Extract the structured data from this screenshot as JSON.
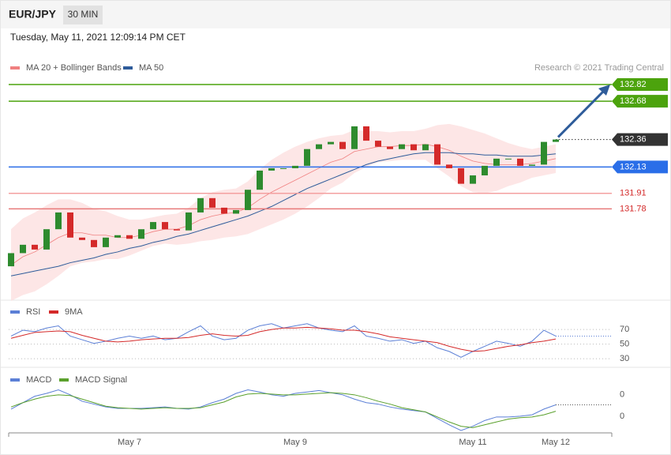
{
  "header": {
    "symbol": "EUR/JPY",
    "interval": "30 MIN",
    "timestamp": "Tuesday, May 11, 2021 12:09:14 PM CET"
  },
  "chart_data": [
    {
      "type": "candlestick",
      "source": "Research © 2021 Trading Central",
      "ylim": [
        131.03,
        133.13
      ],
      "up_color": "#2e8b2e",
      "down_color": "#d42a2a",
      "open": [
        131.3,
        131.41,
        131.48,
        131.44,
        131.61,
        131.75,
        131.54,
        131.52,
        131.46,
        131.54,
        131.56,
        131.53,
        131.61,
        131.67,
        131.61,
        131.6,
        131.75,
        131.87,
        131.79,
        131.74,
        131.77,
        131.94,
        132.1,
        132.12,
        132.12,
        132.14,
        132.28,
        132.32,
        132.34,
        132.28,
        132.47,
        132.35,
        132.3,
        132.28,
        132.32,
        132.27,
        132.32,
        132.15,
        132.12,
        131.99,
        132.06,
        132.14,
        132.2,
        132.2,
        132.14,
        132.15,
        132.34
      ],
      "close": [
        131.41,
        131.48,
        131.44,
        131.61,
        131.75,
        131.54,
        131.52,
        131.46,
        131.54,
        131.56,
        131.53,
        131.61,
        131.67,
        131.61,
        131.6,
        131.75,
        131.87,
        131.79,
        131.74,
        131.77,
        131.94,
        132.1,
        132.12,
        132.12,
        132.14,
        132.28,
        132.32,
        132.34,
        132.28,
        132.47,
        132.35,
        132.3,
        132.28,
        132.32,
        132.27,
        132.32,
        132.15,
        132.12,
        131.99,
        132.06,
        132.14,
        132.2,
        132.2,
        132.14,
        132.15,
        132.34,
        132.36
      ],
      "series": [
        {
          "name": "MA 20 + Bollinger Bands",
          "color": "#f08080",
          "band_color": "#fde0e0",
          "values": [
            131.31,
            131.38,
            131.42,
            131.48,
            131.54,
            131.58,
            131.58,
            131.56,
            131.56,
            131.54,
            131.54,
            131.56,
            131.59,
            131.61,
            131.61,
            131.64,
            131.69,
            131.72,
            131.74,
            131.75,
            131.79,
            131.86,
            131.92,
            131.97,
            132.02,
            132.07,
            132.12,
            132.17,
            132.2,
            132.26,
            132.28,
            132.3,
            132.3,
            132.31,
            132.31,
            132.32,
            132.3,
            132.27,
            132.22,
            132.18,
            132.16,
            132.15,
            132.15,
            132.15,
            132.16,
            132.18,
            132.2
          ],
          "upper": [
            131.61,
            131.7,
            131.75,
            131.81,
            131.86,
            131.86,
            131.83,
            131.78,
            131.76,
            131.72,
            131.69,
            131.69,
            131.71,
            131.73,
            131.74,
            131.79,
            131.87,
            131.92,
            131.94,
            131.95,
            132.01,
            132.11,
            132.19,
            132.25,
            132.3,
            132.34,
            132.37,
            132.39,
            132.4,
            132.44,
            132.43,
            132.43,
            132.42,
            132.43,
            132.43,
            132.45,
            132.48,
            132.49,
            132.47,
            132.44,
            132.41,
            132.37,
            132.33,
            132.3,
            132.28,
            132.3,
            132.32
          ],
          "lower": [
            131.01,
            131.06,
            131.09,
            131.15,
            131.22,
            131.3,
            131.33,
            131.34,
            131.36,
            131.36,
            131.39,
            131.43,
            131.47,
            131.49,
            131.48,
            131.49,
            131.51,
            131.52,
            131.54,
            131.55,
            131.57,
            131.61,
            131.65,
            131.69,
            131.74,
            131.8,
            131.87,
            131.95,
            132.0,
            132.08,
            132.13,
            132.17,
            132.18,
            132.19,
            132.19,
            132.19,
            132.12,
            132.05,
            131.97,
            131.92,
            131.91,
            131.93,
            131.97,
            132.0,
            132.04,
            132.06,
            132.08
          ]
        },
        {
          "name": "MA 50",
          "color": "#2e5c9a",
          "values": [
            131.22,
            131.24,
            131.26,
            131.28,
            131.3,
            131.33,
            131.35,
            131.37,
            131.4,
            131.42,
            131.45,
            131.47,
            131.5,
            131.52,
            131.55,
            131.57,
            131.6,
            131.63,
            131.66,
            131.69,
            131.72,
            131.76,
            131.8,
            131.85,
            131.9,
            131.95,
            131.99,
            132.03,
            132.07,
            132.11,
            132.15,
            132.18,
            132.2,
            132.22,
            132.24,
            132.25,
            132.25,
            132.25,
            132.24,
            132.24,
            132.23,
            132.23,
            132.22,
            132.22,
            132.22,
            132.23,
            132.24
          ]
        }
      ],
      "levels": [
        {
          "value": 132.82,
          "color": "#4ca30d",
          "style": "box",
          "line": "solid"
        },
        {
          "value": 132.68,
          "color": "#4ca30d",
          "style": "box",
          "line": "solid"
        },
        {
          "value": 132.36,
          "color": "#333333",
          "style": "box",
          "line": "dotted"
        },
        {
          "value": 132.13,
          "color": "#2a6ee8",
          "style": "box",
          "line": "solid"
        },
        {
          "value": 131.91,
          "color": "#f4a0a0",
          "text_color": "#d42a2a",
          "style": "text",
          "line": "solid"
        },
        {
          "value": 131.78,
          "color": "#e87a7a",
          "text_color": "#d42a2a",
          "style": "text",
          "line": "solid"
        }
      ]
    },
    {
      "type": "line",
      "ylim": [
        25,
        95
      ],
      "yticks": [
        30,
        50,
        70
      ],
      "series": [
        {
          "name": "RSI",
          "color": "#5b7fd6",
          "values": [
            61,
            69,
            67,
            72,
            75,
            61,
            56,
            51,
            54,
            58,
            61,
            58,
            61,
            56,
            58,
            67,
            75,
            61,
            56,
            58,
            69,
            75,
            78,
            72,
            75,
            78,
            72,
            69,
            67,
            75,
            61,
            58,
            54,
            56,
            51,
            54,
            45,
            40,
            32,
            40,
            47,
            54,
            51,
            47,
            54,
            69,
            61
          ]
        },
        {
          "name": "9MA",
          "color": "#d42a2a",
          "values": [
            58,
            62,
            66,
            67,
            68,
            67,
            62,
            58,
            54,
            53,
            54,
            56,
            57,
            58,
            58,
            59,
            62,
            64,
            62,
            61,
            62,
            67,
            70,
            72,
            72,
            73,
            72,
            71,
            69,
            69,
            67,
            64,
            60,
            58,
            56,
            54,
            52,
            47,
            43,
            40,
            41,
            44,
            47,
            49,
            52,
            54,
            57
          ]
        }
      ]
    },
    {
      "type": "line",
      "ylim": [
        -0.1,
        0.73
      ],
      "yticks": [
        {
          "value": 0.4,
          "label": "0"
        },
        {
          "value": 0.1,
          "label": "0"
        }
      ],
      "categories": [
        null,
        null,
        null,
        null,
        null,
        null,
        null,
        null,
        null,
        null,
        "May 7",
        null,
        null,
        null,
        null,
        null,
        null,
        null,
        null,
        null,
        null,
        null,
        null,
        null,
        "May 9",
        null,
        null,
        null,
        null,
        null,
        null,
        null,
        null,
        null,
        null,
        null,
        null,
        null,
        null,
        "May 11",
        null,
        null,
        null,
        null,
        null,
        null,
        "May 12"
      ],
      "series": [
        {
          "name": "MACD",
          "color": "#5b7fd6",
          "values": [
            0.2,
            0.29,
            0.38,
            0.42,
            0.47,
            0.4,
            0.31,
            0.27,
            0.23,
            0.21,
            0.21,
            0.21,
            0.22,
            0.23,
            0.21,
            0.2,
            0.23,
            0.29,
            0.34,
            0.42,
            0.47,
            0.44,
            0.4,
            0.38,
            0.42,
            0.44,
            0.46,
            0.43,
            0.4,
            0.34,
            0.29,
            0.27,
            0.23,
            0.2,
            0.18,
            0.16,
            0.07,
            -0.02,
            -0.1,
            -0.04,
            0.04,
            0.09,
            0.09,
            0.1,
            0.12,
            0.2,
            0.26
          ]
        },
        {
          "name": "MACD Signal",
          "color": "#5aa02c",
          "values": [
            0.23,
            0.29,
            0.34,
            0.38,
            0.4,
            0.39,
            0.34,
            0.29,
            0.24,
            0.22,
            0.21,
            0.2,
            0.21,
            0.22,
            0.21,
            0.21,
            0.22,
            0.26,
            0.3,
            0.37,
            0.41,
            0.42,
            0.41,
            0.4,
            0.4,
            0.41,
            0.42,
            0.43,
            0.42,
            0.4,
            0.36,
            0.31,
            0.27,
            0.22,
            0.19,
            0.16,
            0.09,
            0.02,
            -0.04,
            -0.06,
            -0.02,
            0.02,
            0.06,
            0.08,
            0.09,
            0.12,
            0.17
          ]
        }
      ]
    }
  ]
}
